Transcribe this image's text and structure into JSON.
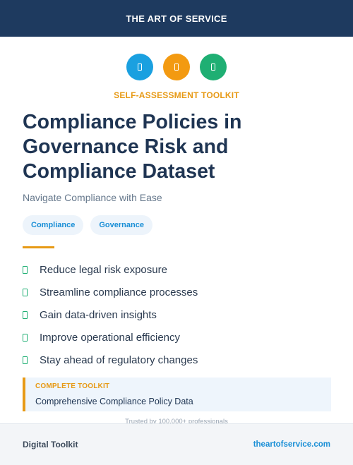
{
  "header": {
    "brand": "THE ART OF SERVICE"
  },
  "icons": [
    {
      "name": "document-icon",
      "color": "#1aa0e0"
    },
    {
      "name": "document-icon",
      "color": "#f39a11"
    },
    {
      "name": "document-icon",
      "color": "#1faf73"
    }
  ],
  "kicker": "SELF-ASSESSMENT TOOLKIT",
  "title": "Compliance Policies in Governance Risk and Compliance Dataset",
  "subtitle": "Navigate Compliance with Ease",
  "tags": [
    "Compliance",
    "Governance"
  ],
  "benefits": [
    "Reduce legal risk exposure",
    "Streamline compliance processes",
    "Gain data-driven insights",
    "Improve operational efficiency",
    "Stay ahead of regulatory changes"
  ],
  "callout": {
    "kicker": "COMPLETE TOOLKIT",
    "text": "Comprehensive Compliance Policy Data"
  },
  "trusted": "Trusted by 100,000+ professionals",
  "footer": {
    "left": "Digital Toolkit",
    "right": "theartofservice.com"
  },
  "colors": {
    "navy": "#1e3a5f",
    "accent": "#e79a16",
    "link": "#1a8fd6",
    "check": "#1faf73"
  }
}
